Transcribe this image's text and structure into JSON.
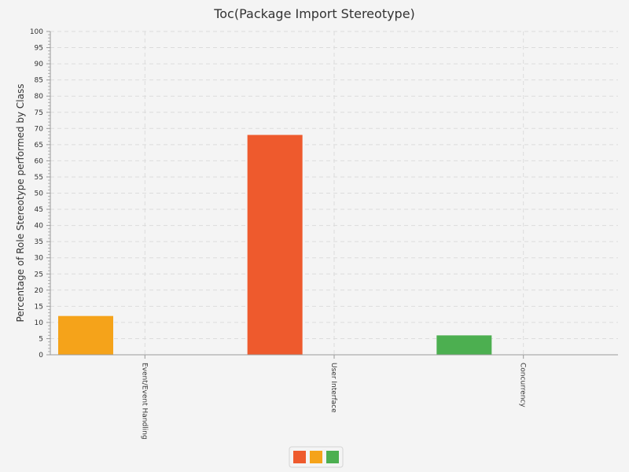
{
  "chart_data": {
    "type": "bar",
    "title": "Toc(Package Import Stereotype)",
    "xlabel": "",
    "ylabel": "Percentage of Role Stereotype performed by Class",
    "ylim": [
      0,
      100
    ],
    "ytick_step": 5,
    "categories": [
      "Event/Event Handling",
      "User Interface",
      "Concurrency"
    ],
    "series": [
      {
        "values": [
          12,
          68,
          6
        ]
      }
    ],
    "bar_colors": [
      "#f5a31a",
      "#ee5a2d",
      "#4caf50"
    ],
    "grid": true,
    "legend": {
      "placement": "bottom-center",
      "swatches": [
        "#ee5a2d",
        "#f5a31a",
        "#4caf50"
      ]
    }
  }
}
